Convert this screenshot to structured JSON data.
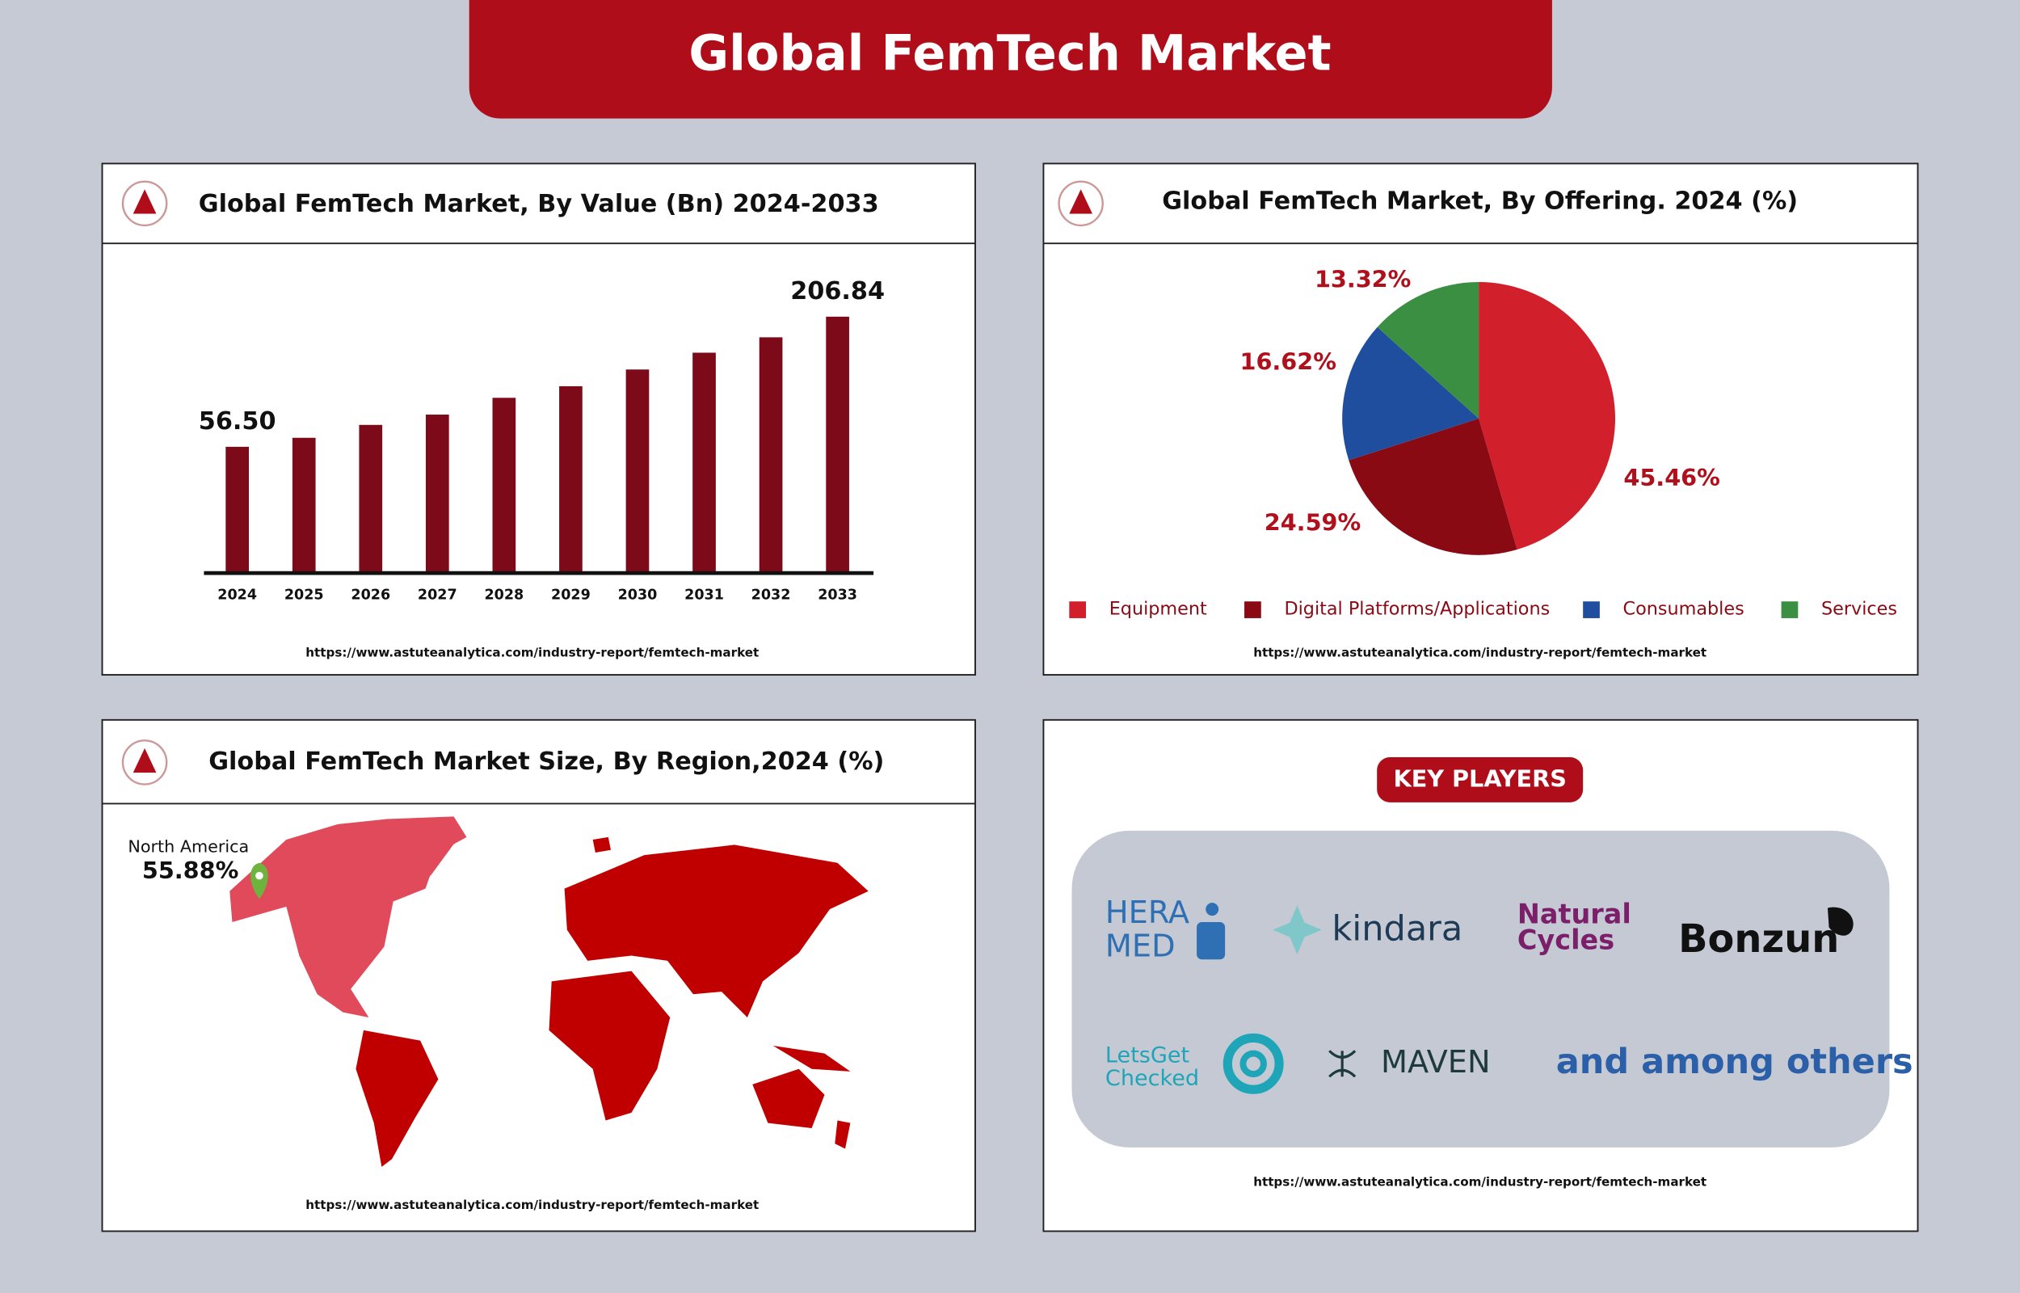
{
  "title": "Global FemTech Market",
  "chart_data": [
    {
      "type": "bar",
      "title": "Global FemTech Market, By Value (Bn) 2024-2033",
      "categories": [
        "2024",
        "2025",
        "2026",
        "2027",
        "2028",
        "2029",
        "2030",
        "2031",
        "2032",
        "2033"
      ],
      "values": [
        56.5,
        66.9,
        81.8,
        93.7,
        113.1,
        126.5,
        145.8,
        165.2,
        183.0,
        206.84
      ],
      "value_labels": [
        "56.50",
        null,
        null,
        null,
        null,
        null,
        null,
        null,
        null,
        "206.84"
      ],
      "color": "#7d0a18",
      "ylim": [
        -89.4,
        290
      ],
      "source": "https://www.astuteanalytica.com/industry-report/femtech-market"
    },
    {
      "type": "pie",
      "title": "Global FemTech Market, By Offering. 2024 (%)",
      "categories": [
        "Equipment",
        "Digital Platforms/Applications",
        "Consumables",
        "Services"
      ],
      "values": [
        45.46,
        24.59,
        16.62,
        13.32
      ],
      "value_labels": [
        "45.46%",
        "24.59%",
        "16.62%",
        "13.32%"
      ],
      "colors": [
        "#d11f2b",
        "#8a0a14",
        "#1f4e9e",
        "#3a8f43"
      ],
      "legend": "bottom",
      "source": "https://www.astuteanalytica.com/industry-report/femtech-market"
    }
  ],
  "map": {
    "title": "Global FemTech Market Size, By Region,2024 (%)",
    "region": "North America",
    "share": "55.88%",
    "source": "https://www.astuteanalytica.com/industry-report/femtech-market"
  },
  "key_players": {
    "title": "KEY PLAYERS",
    "players": [
      {
        "lines": [
          "HERA",
          "MED"
        ]
      },
      {
        "lines": [
          "kindara"
        ]
      },
      {
        "lines": [
          "Natural",
          "Cycles"
        ]
      },
      {
        "lines": [
          "Bonzun"
        ]
      },
      {
        "lines": [
          "LetsGet",
          "Checked"
        ]
      },
      {
        "lines": [
          "MAVEN"
        ]
      },
      {
        "lines": [
          "and among others"
        ]
      }
    ],
    "source": "https://www.astuteanalytica.com/industry-report/femtech-market"
  }
}
